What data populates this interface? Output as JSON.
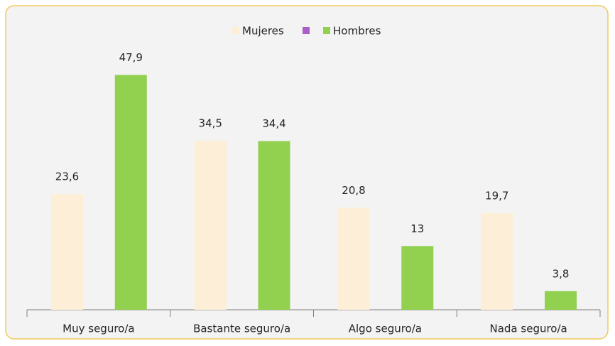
{
  "chart_data": {
    "type": "bar",
    "categories": [
      "Muy seguro/a",
      "Bastante seguro/a",
      "Algo seguro/a",
      "Nada seguro/a"
    ],
    "series": [
      {
        "name": "Mujeres",
        "color": "#fdefd7",
        "values": [
          23.6,
          34.5,
          20.8,
          19.7
        ],
        "value_labels": [
          "23,6",
          "34,5",
          "20,8",
          "19,7"
        ]
      },
      {
        "name": "Hombres",
        "color": "#92d050",
        "values": [
          47.9,
          34.4,
          13,
          3.8
        ],
        "value_labels": [
          "47,9",
          "34,4",
          "13",
          "3,8"
        ]
      }
    ],
    "ylim": [
      0,
      50
    ],
    "legend": "top"
  }
}
